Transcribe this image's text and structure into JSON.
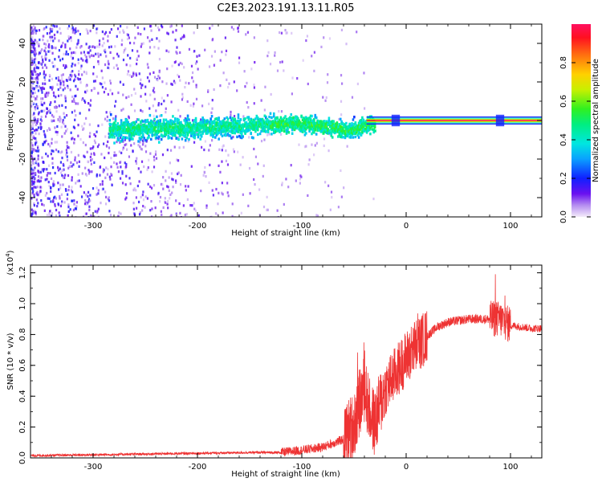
{
  "title": "C2E3.2023.191.13.11.R05",
  "chart_data": [
    {
      "type": "heatmap",
      "xlabel": "Height of straight line (km)",
      "ylabel": "Frequency (Hz)",
      "xlim": [
        -360,
        130
      ],
      "ylim": [
        -50,
        50
      ],
      "xticks": [
        -300,
        -200,
        -100,
        0,
        100
      ],
      "yticks": [
        -40,
        -20,
        0,
        20,
        40
      ],
      "colorbar": {
        "label": "Normalized spectral amplitude",
        "range": [
          0,
          1
        ],
        "ticks": [
          "0.0",
          "0.2",
          "0.4",
          "0.6",
          "0.8"
        ]
      },
      "trace_center": [
        {
          "x": -280,
          "y": -4
        },
        {
          "x": -200,
          "y": -3
        },
        {
          "x": -150,
          "y": -2
        },
        {
          "x": -100,
          "y": -1
        },
        {
          "x": -70,
          "y": -3
        },
        {
          "x": -55,
          "y": -5
        },
        {
          "x": -40,
          "y": -2
        },
        {
          "x": -25,
          "y": 0
        },
        {
          "x": 0,
          "y": 0
        },
        {
          "x": 130,
          "y": 0
        }
      ],
      "grid": false
    },
    {
      "type": "line",
      "xlabel": "Height of straight line (km)",
      "ylabel": "SNR (10 * v/v)",
      "y_scale_label": "(x10",
      "y_scale_exponent": "4",
      "y_scale_suffix": ")",
      "xlim": [
        -360,
        130
      ],
      "ylim": [
        0,
        1.25
      ],
      "xticks": [
        -300,
        -200,
        -100,
        0,
        100
      ],
      "yticks": [
        "0.0",
        "0.2",
        "0.4",
        "0.6",
        "0.8",
        "1.0",
        "1.2"
      ],
      "color": "#ee3333",
      "series": [
        {
          "x": [
            -360,
            -300,
            -250,
            -200,
            -150,
            -120,
            -100,
            -80,
            -60,
            -50,
            -45,
            -40,
            -35,
            -30,
            -25,
            -20,
            -15,
            -10,
            -5,
            0,
            10,
            20,
            30,
            40,
            50,
            60,
            70,
            80,
            85,
            90,
            95,
            100,
            110,
            120,
            130
          ],
          "values": [
            0.015,
            0.02,
            0.025,
            0.03,
            0.035,
            0.035,
            0.05,
            0.07,
            0.12,
            0.22,
            0.35,
            0.45,
            0.3,
            0.22,
            0.35,
            0.45,
            0.5,
            0.55,
            0.6,
            0.65,
            0.73,
            0.79,
            0.85,
            0.88,
            0.89,
            0.9,
            0.9,
            0.9,
            0.9,
            0.9,
            0.88,
            0.86,
            0.85,
            0.84,
            0.84
          ]
        }
      ],
      "grid": false
    }
  ],
  "colors": {
    "trace": "#ee3333",
    "axis": "#000000",
    "background": "#ffffff"
  }
}
